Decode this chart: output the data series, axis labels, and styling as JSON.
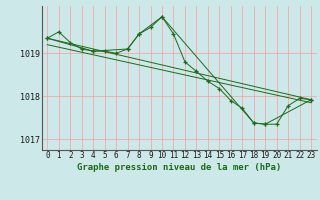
{
  "title": "Graphe pression niveau de la mer (hPa)",
  "background_color": "#cce8e8",
  "grid_color": "#ff9999",
  "line_color": "#1a6b1a",
  "xlim": [
    -0.5,
    23.5
  ],
  "ylim": [
    1016.75,
    1020.1
  ],
  "yticks": [
    1017,
    1018,
    1019
  ],
  "xticks": [
    0,
    1,
    2,
    3,
    4,
    5,
    6,
    7,
    8,
    9,
    10,
    11,
    12,
    13,
    14,
    15,
    16,
    17,
    18,
    19,
    20,
    21,
    22,
    23
  ],
  "line1_x": [
    0,
    1,
    2,
    3,
    4,
    5,
    6,
    7,
    8,
    9,
    10,
    11,
    12,
    13,
    14,
    15,
    16,
    17,
    18,
    19,
    20,
    21,
    22,
    23
  ],
  "line1_y": [
    1019.35,
    1019.5,
    1019.25,
    1019.1,
    1019.05,
    1019.05,
    1019.0,
    1019.1,
    1019.45,
    1019.6,
    1019.85,
    1019.45,
    1018.8,
    1018.58,
    1018.35,
    1018.18,
    1017.9,
    1017.72,
    1017.38,
    1017.35,
    1017.35,
    1017.78,
    1017.95,
    1017.92
  ],
  "line2_x": [
    0,
    4,
    7,
    8,
    10,
    18,
    19,
    23
  ],
  "line2_y": [
    1019.35,
    1019.05,
    1019.1,
    1019.45,
    1019.85,
    1017.38,
    1017.35,
    1017.92
  ],
  "line3_x": [
    0,
    23
  ],
  "line3_y": [
    1019.35,
    1017.92
  ],
  "line4_x": [
    0,
    23
  ],
  "line4_y": [
    1019.2,
    1017.85
  ],
  "title_fontsize": 6.5,
  "tick_fontsize": 5.5,
  "ytick_fontsize": 6.0
}
